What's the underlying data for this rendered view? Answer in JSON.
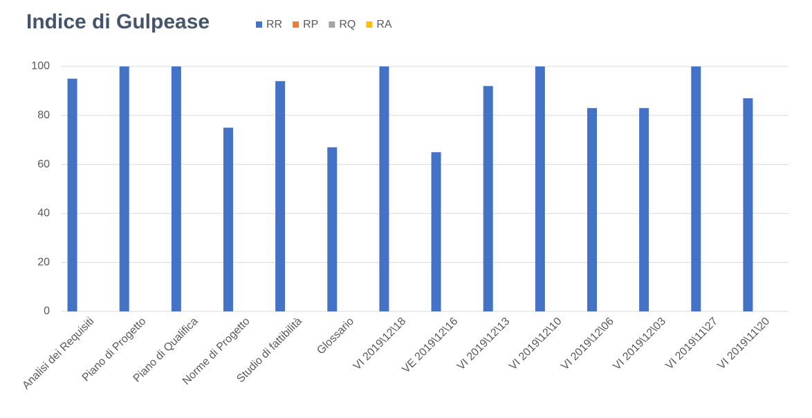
{
  "chart_data": {
    "type": "bar",
    "title": "Indice di Gulpease",
    "categories": [
      "Analisi dei Requisiti",
      "Piano di Progetto",
      "Piano di Qualifica",
      "Norme di Progetto",
      "Studio di fattibilità",
      "Glossario",
      "VI 2019\\12\\18",
      "VE 2019\\12\\16",
      "VI 2019\\12\\13",
      "VI 2019\\12\\10",
      "VI 2019\\12\\06",
      "VI 2019\\12\\03",
      "VI 2019\\11\\27",
      "VI 2019\\11\\20"
    ],
    "series": [
      {
        "name": "RR",
        "color": "#4472c4",
        "values": [
          95,
          100,
          100,
          75,
          94,
          67,
          100,
          65,
          92,
          100,
          83,
          83,
          100,
          87
        ]
      },
      {
        "name": "RP",
        "color": "#ed7d31",
        "values": [
          null,
          null,
          null,
          null,
          null,
          null,
          null,
          null,
          null,
          null,
          null,
          null,
          null,
          null
        ]
      },
      {
        "name": "RQ",
        "color": "#a5a5a5",
        "values": [
          null,
          null,
          null,
          null,
          null,
          null,
          null,
          null,
          null,
          null,
          null,
          null,
          null,
          null
        ]
      },
      {
        "name": "RA",
        "color": "#ffc000",
        "values": [
          null,
          null,
          null,
          null,
          null,
          null,
          null,
          null,
          null,
          null,
          null,
          null,
          null,
          null
        ]
      }
    ],
    "ylim": [
      0,
      100
    ],
    "yticks": [
      0,
      20,
      40,
      60,
      80,
      100
    ],
    "grid": true,
    "legend": "top"
  }
}
